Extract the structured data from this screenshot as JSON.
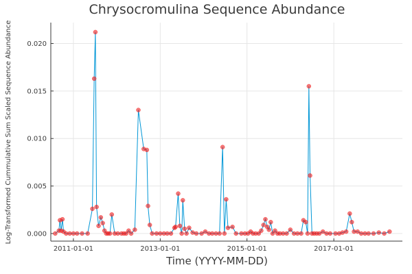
{
  "chart_data": {
    "type": "line",
    "title": "Chrysocromulina Sequence Abundance",
    "xlabel": "Time (YYYY-MM-DD)",
    "ylabel": "Log-Transformed Cummulative Sum Scaled Sequence Abundance",
    "x_axis_type": "date",
    "xlim": [
      "2010-06-25",
      "2018-08-01"
    ],
    "ylim": [
      -0.0008,
      0.0222
    ],
    "x_ticks": [
      "2011-01-01",
      "2013-01-01",
      "2015-01-01",
      "2017-01-01"
    ],
    "y_ticks": [
      "0.000",
      "0.005",
      "0.010",
      "0.015",
      "0.020"
    ],
    "y_tick_values": [
      0.0,
      0.005,
      0.01,
      0.015,
      0.02
    ],
    "grid": true,
    "legend": "none",
    "line_color": "#0096d6",
    "marker_color": "#ee1d1d",
    "series": [
      {
        "x": [
          "2010-08-01",
          "2010-09-01",
          "2010-09-10",
          "2010-09-20",
          "2010-10-01",
          "2010-10-10",
          "2010-11-01",
          "2010-12-01",
          "2011-01-01",
          "2011-02-01",
          "2011-03-15",
          "2011-05-01",
          "2011-06-10",
          "2011-06-25",
          "2011-07-05",
          "2011-07-15",
          "2011-08-01",
          "2011-08-20",
          "2011-09-05",
          "2011-09-20",
          "2011-10-05",
          "2011-10-20",
          "2011-11-05",
          "2011-11-20",
          "2011-12-15",
          "2012-01-10",
          "2012-02-10",
          "2012-03-01",
          "2012-03-20",
          "2012-04-10",
          "2012-05-01",
          "2012-06-01",
          "2012-07-01",
          "2012-08-15",
          "2012-09-10",
          "2012-09-20",
          "2012-10-05",
          "2012-10-25",
          "2012-12-01",
          "2013-01-01",
          "2013-02-01",
          "2013-03-01",
          "2013-04-01",
          "2013-05-01",
          "2013-05-10",
          "2013-06-01",
          "2013-06-15",
          "2013-07-01",
          "2013-07-10",
          "2013-07-25",
          "2013-08-10",
          "2013-09-01",
          "2013-10-01",
          "2013-11-01",
          "2013-12-15",
          "2014-01-15",
          "2014-02-15",
          "2014-03-15",
          "2014-04-15",
          "2014-05-15",
          "2014-06-10",
          "2014-06-25",
          "2014-07-10",
          "2014-07-25",
          "2014-09-01",
          "2014-10-01",
          "2014-11-15",
          "2014-12-15",
          "2015-01-10",
          "2015-02-01",
          "2015-02-20",
          "2015-03-15",
          "2015-04-10",
          "2015-05-01",
          "2015-05-20",
          "2015-06-05",
          "2015-06-20",
          "2015-07-05",
          "2015-07-20",
          "2015-08-05",
          "2015-08-25",
          "2015-09-15",
          "2015-10-05",
          "2015-11-01",
          "2015-12-01",
          "2016-01-01",
          "2016-02-01",
          "2016-03-01",
          "2016-04-01",
          "2016-04-20",
          "2016-05-10",
          "2016-05-25",
          "2016-06-05",
          "2016-06-15",
          "2016-07-01",
          "2016-07-20",
          "2016-08-10",
          "2016-09-01",
          "2016-10-01",
          "2016-11-01",
          "2016-12-01",
          "2017-01-15",
          "2017-02-15",
          "2017-03-15",
          "2017-04-15",
          "2017-05-15",
          "2017-06-01",
          "2017-06-20",
          "2017-07-20",
          "2017-08-20",
          "2017-09-20",
          "2017-10-20",
          "2017-12-01",
          "2018-01-15",
          "2018-03-01",
          "2018-04-15"
        ],
        "y": [
          0.0,
          0.0003,
          0.0014,
          0.0003,
          0.0015,
          0.0002,
          0.0,
          0.0,
          0.0,
          0.0,
          0.0,
          0.0,
          0.0026,
          0.0163,
          0.0212,
          0.0028,
          0.0008,
          0.0017,
          0.0011,
          0.0003,
          0.0,
          0.0,
          0.0,
          0.002,
          0.0,
          0.0,
          0.0,
          0.0,
          0.0,
          0.0003,
          0.0,
          0.0004,
          0.013,
          0.0089,
          0.0088,
          0.0029,
          0.0009,
          0.0,
          0.0,
          0.0,
          0.0,
          0.0,
          0.0,
          0.0006,
          0.0007,
          0.0042,
          0.0008,
          0.0,
          0.0035,
          0.0005,
          0.0,
          0.0006,
          0.0001,
          0.0,
          0.0,
          0.0002,
          0.0,
          0.0,
          0.0,
          0.0,
          0.0091,
          0.0,
          0.0036,
          0.0006,
          0.0007,
          0.0,
          0.0,
          0.0,
          0.0,
          0.0002,
          0.0,
          0.0,
          0.0,
          0.0003,
          0.0009,
          0.0015,
          0.0007,
          0.0004,
          0.0012,
          0.0,
          0.0003,
          0.0,
          0.0,
          0.0,
          0.0,
          0.0004,
          0.0,
          0.0,
          0.0,
          0.0014,
          0.0012,
          0.0,
          0.0155,
          0.0061,
          0.0,
          0.0,
          0.0,
          0.0,
          0.0002,
          0.0,
          0.0,
          0.0,
          0.0,
          0.0001,
          0.0002,
          0.0021,
          0.0012,
          0.0002,
          0.0002,
          0.0,
          0.0,
          0.0,
          0.0,
          0.0001,
          0.0,
          0.0002
        ]
      }
    ]
  }
}
